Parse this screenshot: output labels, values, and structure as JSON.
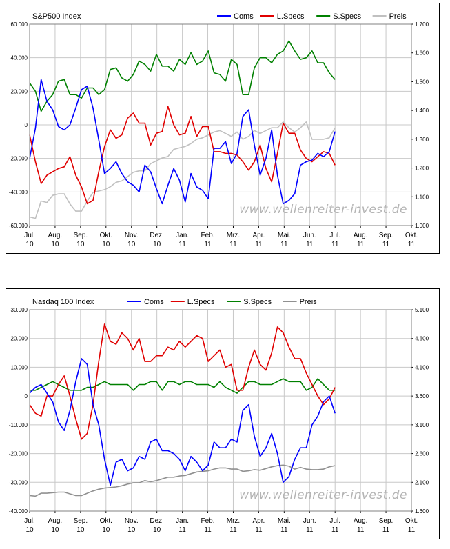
{
  "chart_data": [
    {
      "type": "line",
      "title": "S&P500 Index",
      "watermark": "www.wellenreiter-invest.de",
      "y_left": {
        "min": -60000,
        "max": 60000,
        "step": 20000,
        "tick_labels": [
          "60.000",
          "40.000",
          "20.000",
          "0",
          "-20.000",
          "-40.000",
          "-60.000"
        ]
      },
      "y_right": {
        "min": 1000,
        "max": 1700,
        "step": 100,
        "tick_labels": [
          "1.700",
          "1.600",
          "1.500",
          "1.400",
          "1.300",
          "1.200",
          "1.100",
          "1.000"
        ]
      },
      "x_axis": {
        "categories": [
          "Jul.",
          "Aug.",
          "Sep.",
          "Okt.",
          "Nov.",
          "Dez.",
          "Jan.",
          "Feb.",
          "Mrz.",
          "Apr.",
          "Mai.",
          "Jun.",
          "Jul.",
          "Aug.",
          "Sep.",
          "Okt."
        ],
        "years": [
          "10",
          "10",
          "10",
          "10",
          "10",
          "10",
          "11",
          "11",
          "11",
          "11",
          "11",
          "11",
          "11",
          "11",
          "11",
          "11"
        ]
      },
      "grid": true,
      "legend_position": "top-right",
      "series": [
        {
          "name": "Coms",
          "axis": "left",
          "color": "#0000ff",
          "values": [
            -20000,
            -2000,
            27000,
            14000,
            9000,
            -1000,
            -3000,
            0,
            10000,
            21000,
            23000,
            10000,
            -9000,
            -29000,
            -26000,
            -22000,
            -29000,
            -34000,
            -36000,
            -40000,
            -24000,
            -28000,
            -38000,
            -47000,
            -36000,
            -26000,
            -33000,
            -46000,
            -29000,
            -37000,
            -39000,
            -44000,
            -14000,
            -14000,
            -10000,
            -23000,
            -17000,
            5000,
            9000,
            -12000,
            -30000,
            -20000,
            -3000,
            -30000,
            -47000,
            -45000,
            -41000,
            -24000,
            -22000,
            -21000,
            -17000,
            -19000,
            -16000,
            -4000
          ]
        },
        {
          "name": "L.Specs",
          "axis": "left",
          "color": "#e00000",
          "values": [
            -6000,
            -22000,
            -35000,
            -30000,
            -28000,
            -26000,
            -25000,
            -19000,
            -30000,
            -37000,
            -47000,
            -45000,
            -28000,
            -13000,
            -3000,
            -8000,
            -6000,
            4000,
            7000,
            1000,
            1000,
            -12000,
            -5000,
            -4000,
            11000,
            0,
            -6000,
            -5000,
            5000,
            -7000,
            -1000,
            -1000,
            -16000,
            -16000,
            -17000,
            -17000,
            -18000,
            -22000,
            -27000,
            -22000,
            -12000,
            -26000,
            -34000,
            -17000,
            1000,
            -5000,
            -5000,
            -15000,
            -20000,
            -22000,
            -19000,
            -16000,
            -17000,
            -24000
          ]
        },
        {
          "name": "S.Specs",
          "axis": "left",
          "color": "#008000",
          "values": [
            25000,
            20000,
            8000,
            14000,
            18000,
            26000,
            27000,
            18000,
            18000,
            16000,
            22000,
            22000,
            18000,
            21000,
            33000,
            34000,
            28000,
            26000,
            30000,
            38000,
            36000,
            32000,
            42000,
            35000,
            35000,
            32000,
            39000,
            36000,
            43000,
            36000,
            38000,
            44000,
            31000,
            30000,
            26000,
            39000,
            36000,
            18000,
            18000,
            34000,
            40000,
            40000,
            37000,
            42000,
            44000,
            50000,
            44000,
            39000,
            40000,
            44000,
            37000,
            37000,
            31000,
            27000
          ]
        },
        {
          "name": "Preis",
          "axis": "right",
          "color": "#c0c0c0",
          "values": [
            1030,
            1025,
            1085,
            1080,
            1105,
            1110,
            1110,
            1075,
            1050,
            1050,
            1085,
            1115,
            1120,
            1125,
            1135,
            1150,
            1155,
            1170,
            1185,
            1190,
            1190,
            1215,
            1225,
            1235,
            1240,
            1265,
            1270,
            1275,
            1285,
            1300,
            1305,
            1315,
            1325,
            1330,
            1320,
            1310,
            1325,
            1300,
            1310,
            1330,
            1320,
            1330,
            1340,
            1340,
            1360,
            1340,
            1325,
            1340,
            1360,
            1300,
            1300,
            1300,
            1305,
            1340
          ]
        }
      ]
    },
    {
      "type": "line",
      "title": "Nasdaq 100 Index",
      "watermark": "www.wellenreiter-invest.de",
      "y_left": {
        "min": -40000,
        "max": 30000,
        "step": 10000,
        "tick_labels": [
          "30.000",
          "20.000",
          "10.000",
          "0",
          "-10.000",
          "-20.000",
          "-30.000",
          "-40.000"
        ]
      },
      "y_right": {
        "min": 1600,
        "max": 5100,
        "step": 500,
        "tick_labels": [
          "5.100",
          "4.600",
          "4.100",
          "3.600",
          "3.100",
          "2.600",
          "2.100",
          "1.600"
        ]
      },
      "x_axis": {
        "categories": [
          "Jul.",
          "Aug.",
          "Sep.",
          "Okt.",
          "Nov.",
          "Dez.",
          "Jan.",
          "Feb.",
          "Mrz.",
          "Apr.",
          "Mai.",
          "Jun.",
          "Jul.",
          "Aug.",
          "Sep.",
          "Okt."
        ],
        "years": [
          "10",
          "10",
          "10",
          "10",
          "10",
          "10",
          "11",
          "11",
          "11",
          "11",
          "11",
          "11",
          "11",
          "11",
          "11",
          "11"
        ]
      },
      "grid": true,
      "legend_position": "top",
      "series": [
        {
          "name": "Coms",
          "axis": "left",
          "color": "#0000ff",
          "values": [
            1000,
            3000,
            4000,
            1000,
            -2000,
            -9000,
            -12000,
            -5000,
            5000,
            13000,
            11000,
            -3000,
            -10000,
            -22000,
            -31000,
            -23000,
            -22000,
            -26000,
            -25000,
            -21000,
            -22000,
            -16000,
            -15000,
            -19000,
            -19000,
            -20000,
            -22000,
            -26000,
            -21000,
            -23000,
            -26000,
            -24000,
            -16000,
            -18000,
            -18000,
            -15000,
            -16000,
            -5000,
            -3000,
            -14000,
            -21000,
            -18000,
            -13000,
            -20000,
            -30000,
            -28000,
            -22000,
            -18000,
            -18000,
            -10000,
            -7000,
            -2000,
            0,
            -6000
          ]
        },
        {
          "name": "L.Specs",
          "axis": "left",
          "color": "#e00000",
          "values": [
            -3000,
            -6000,
            -7000,
            0,
            0,
            4000,
            7000,
            0,
            -8000,
            -15000,
            -13000,
            -3000,
            12000,
            25000,
            19000,
            18000,
            22000,
            20000,
            16000,
            20000,
            12000,
            12000,
            14000,
            14000,
            17000,
            16000,
            19000,
            17000,
            19000,
            21000,
            20000,
            12000,
            14000,
            16000,
            10000,
            11000,
            2000,
            2000,
            10000,
            16000,
            11000,
            9000,
            15000,
            24000,
            22000,
            17000,
            13000,
            13000,
            8000,
            4000,
            0,
            -3000,
            -1000,
            3000
          ]
        },
        {
          "name": "S.Specs",
          "axis": "left",
          "color": "#008000",
          "values": [
            2000,
            2000,
            3000,
            4000,
            5000,
            4000,
            3000,
            2000,
            2000,
            2000,
            3000,
            3000,
            4000,
            5000,
            4000,
            4000,
            4000,
            4000,
            2000,
            4000,
            4000,
            5000,
            5000,
            2000,
            5000,
            5000,
            4000,
            5000,
            5000,
            4000,
            4000,
            4000,
            3000,
            5000,
            3000,
            2000,
            1000,
            3000,
            5000,
            5000,
            4000,
            4000,
            4000,
            5000,
            6000,
            5000,
            5000,
            5000,
            2000,
            3000,
            6000,
            4000,
            2000,
            2000
          ]
        },
        {
          "name": "Preis",
          "axis": "right",
          "color": "#909090",
          "values": [
            1870,
            1860,
            1910,
            1910,
            1920,
            1930,
            1930,
            1900,
            1870,
            1870,
            1910,
            1950,
            1980,
            2000,
            2010,
            2020,
            2040,
            2070,
            2090,
            2090,
            2130,
            2110,
            2130,
            2160,
            2190,
            2190,
            2210,
            2220,
            2250,
            2280,
            2290,
            2300,
            2330,
            2350,
            2350,
            2330,
            2330,
            2290,
            2300,
            2320,
            2310,
            2340,
            2370,
            2390,
            2400,
            2380,
            2330,
            2360,
            2330,
            2320,
            2320,
            2330,
            2370,
            2390
          ]
        }
      ]
    }
  ]
}
